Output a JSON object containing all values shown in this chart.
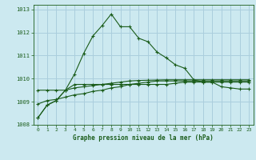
{
  "title": "Graphe pression niveau de la mer (hPa)",
  "bg_color": "#cce9f0",
  "grid_color": "#aacedd",
  "line_color": "#1a5c1a",
  "xlim": [
    -0.5,
    23.5
  ],
  "ylim": [
    1008,
    1013.2
  ],
  "yticks": [
    1008,
    1009,
    1010,
    1011,
    1012,
    1013
  ],
  "xticks": [
    0,
    1,
    2,
    3,
    4,
    5,
    6,
    7,
    8,
    9,
    10,
    11,
    12,
    13,
    14,
    15,
    16,
    17,
    18,
    19,
    20,
    21,
    22,
    23
  ],
  "series1_x": [
    0,
    1,
    2,
    3,
    4,
    5,
    6,
    7,
    8,
    9,
    10,
    11,
    12,
    13,
    14,
    15,
    16,
    17,
    18,
    19,
    20,
    21,
    22,
    23
  ],
  "series1_y": [
    1008.3,
    1008.85,
    1009.05,
    1009.5,
    1009.75,
    1009.75,
    1009.75,
    1009.75,
    1009.75,
    1009.75,
    1009.75,
    1009.75,
    1009.75,
    1009.75,
    1009.75,
    1009.8,
    1009.85,
    1009.85,
    1009.85,
    1009.85,
    1009.85,
    1009.85,
    1009.85,
    1009.85
  ],
  "series2_x": [
    0,
    1,
    2,
    3,
    4,
    5,
    6,
    7,
    8,
    9,
    10,
    11,
    12,
    13,
    14,
    15,
    16,
    17,
    18,
    19,
    20,
    21,
    22,
    23
  ],
  "series2_y": [
    1008.9,
    1009.05,
    1009.1,
    1009.2,
    1009.3,
    1009.35,
    1009.45,
    1009.5,
    1009.6,
    1009.65,
    1009.75,
    1009.8,
    1009.85,
    1009.9,
    1009.9,
    1009.9,
    1009.9,
    1009.9,
    1009.9,
    1009.9,
    1009.9,
    1009.9,
    1009.9,
    1009.9
  ],
  "series3_x": [
    0,
    1,
    2,
    3,
    4,
    5,
    6,
    7,
    8,
    9,
    10,
    11,
    12,
    13,
    14,
    15,
    16,
    17,
    18,
    19,
    20,
    21,
    22,
    23
  ],
  "series3_y": [
    1008.3,
    1008.85,
    1009.05,
    1009.5,
    1010.2,
    1011.1,
    1011.85,
    1012.3,
    1012.8,
    1012.25,
    1012.25,
    1011.75,
    1011.6,
    1011.15,
    1010.9,
    1010.6,
    1010.45,
    1009.95,
    1009.85,
    1009.85,
    1009.65,
    1009.6,
    1009.55,
    1009.55
  ],
  "series4_x": [
    0,
    1,
    2,
    3,
    4,
    5,
    6,
    7,
    8,
    9,
    10,
    11,
    12,
    13,
    14,
    15,
    16,
    17,
    18,
    19,
    20,
    21,
    22,
    23
  ],
  "series4_y": [
    1009.5,
    1009.5,
    1009.5,
    1009.5,
    1009.6,
    1009.65,
    1009.7,
    1009.75,
    1009.8,
    1009.85,
    1009.9,
    1009.92,
    1009.93,
    1009.94,
    1009.95,
    1009.95,
    1009.95,
    1009.95,
    1009.95,
    1009.95,
    1009.95,
    1009.95,
    1009.95,
    1009.95
  ]
}
